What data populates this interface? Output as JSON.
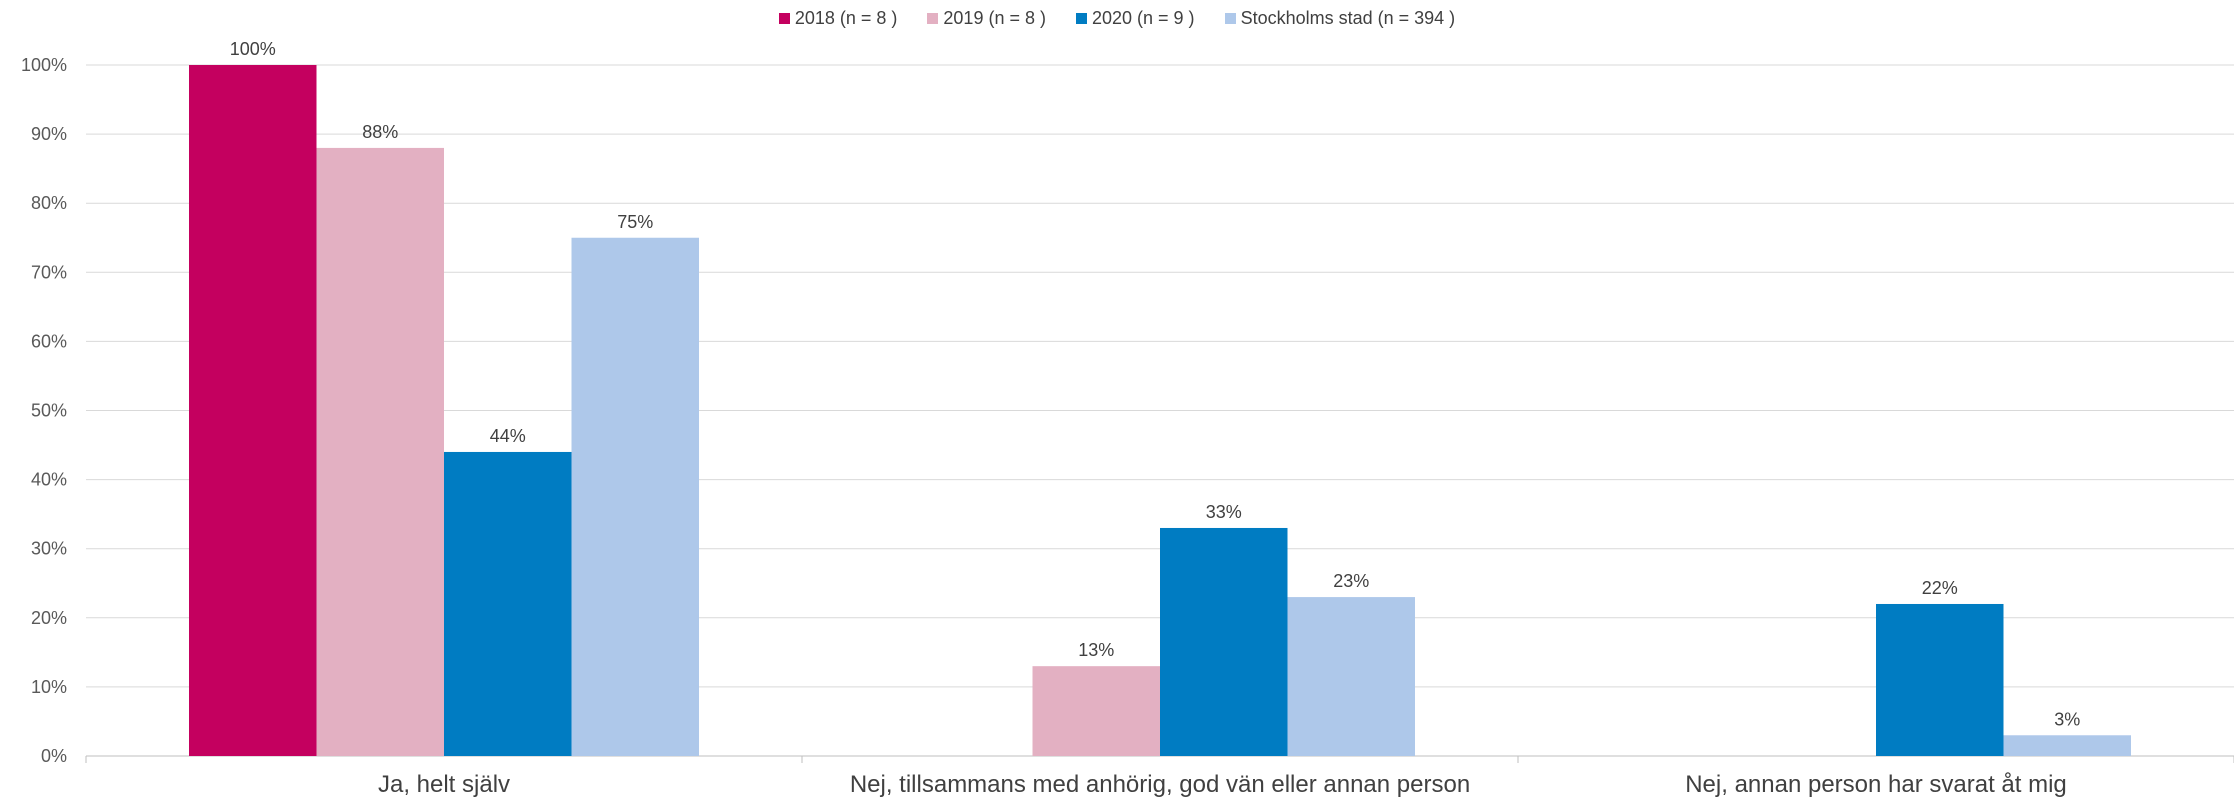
{
  "chart_data": {
    "type": "bar",
    "categories": [
      "Ja, helt själv",
      "Nej, tillsammans med anhörig, god vän eller annan person",
      "Nej, annan person har svarat åt mig"
    ],
    "series": [
      {
        "name": "2018 (n = 8 )",
        "color": "#C4005F",
        "values": [
          100,
          null,
          null
        ],
        "labels": [
          "100%",
          "",
          ""
        ]
      },
      {
        "name": "2019 (n = 8 )",
        "color": "#E3B0C2",
        "values": [
          88,
          13,
          null
        ],
        "labels": [
          "88%",
          "13%",
          ""
        ]
      },
      {
        "name": "2020 (n = 9 )",
        "color": "#007CC2",
        "values": [
          44,
          33,
          22
        ],
        "labels": [
          "44%",
          "33%",
          "22%"
        ]
      },
      {
        "name": "Stockholms stad (n = 394 )",
        "color": "#AEC8EA",
        "values": [
          75,
          23,
          3
        ],
        "labels": [
          "75%",
          "23%",
          "3%"
        ]
      }
    ],
    "ylim": [
      0,
      100
    ],
    "yticks": [
      "0%",
      "10%",
      "20%",
      "30%",
      "40%",
      "50%",
      "60%",
      "70%",
      "80%",
      "90%",
      "100%"
    ],
    "grid": true,
    "legend_position": "top-center"
  }
}
